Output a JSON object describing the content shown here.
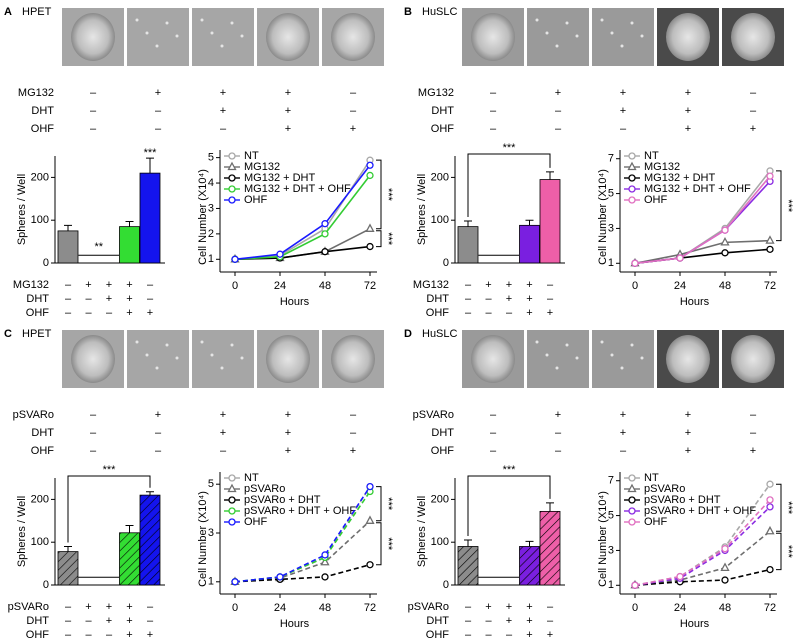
{
  "panels": [
    {
      "letter": "A",
      "title": "HPET",
      "rows": [
        {
          "label": "MG132",
          "marks": [
            "–",
            "+",
            "+",
            "+",
            "–"
          ]
        },
        {
          "label": "DHT",
          "marks": [
            "–",
            "–",
            "+",
            "+",
            "–"
          ]
        },
        {
          "label": "OHF",
          "marks": [
            "–",
            "–",
            "–",
            "+",
            "+"
          ]
        }
      ]
    },
    {
      "letter": "B",
      "title": "HuSLC",
      "rows": [
        {
          "label": "MG132",
          "marks": [
            "–",
            "+",
            "+",
            "+",
            "–"
          ]
        },
        {
          "label": "DHT",
          "marks": [
            "–",
            "–",
            "+",
            "+",
            "–"
          ]
        },
        {
          "label": "OHF",
          "marks": [
            "–",
            "–",
            "–",
            "+",
            "+"
          ]
        }
      ]
    },
    {
      "letter": "C",
      "title": "HPET",
      "rows": [
        {
          "label": "pSVARo",
          "marks": [
            "–",
            "+",
            "+",
            "+",
            "–"
          ]
        },
        {
          "label": "DHT",
          "marks": [
            "–",
            "–",
            "+",
            "+",
            "–"
          ]
        },
        {
          "label": "OHF",
          "marks": [
            "–",
            "–",
            "–",
            "+",
            "+"
          ]
        }
      ]
    },
    {
      "letter": "D",
      "title": "HuSLC",
      "rows": [
        {
          "label": "pSVARo",
          "marks": [
            "–",
            "+",
            "+",
            "+",
            "–"
          ]
        },
        {
          "label": "DHT",
          "marks": [
            "–",
            "–",
            "+",
            "+",
            "–"
          ]
        },
        {
          "label": "OHF",
          "marks": [
            "–",
            "–",
            "–",
            "+",
            "+"
          ]
        }
      ]
    }
  ],
  "chart_data": [
    {
      "type": "bar",
      "y_label": "Spheres / Well",
      "category_rows": [
        {
          "label": "MG132",
          "marks": [
            "–",
            "+",
            "+",
            "+",
            "–"
          ]
        },
        {
          "label": "DHT",
          "marks": [
            "–",
            "–",
            "+",
            "+",
            "–"
          ]
        },
        {
          "label": "OHF",
          "marks": [
            "–",
            "–",
            "–",
            "+",
            "+"
          ]
        }
      ],
      "values": [
        75,
        0,
        0,
        85,
        210
      ],
      "errors": [
        13,
        0,
        0,
        12,
        35
      ],
      "colors": [
        "#8c8c8c",
        "#ffffff",
        "#ffffff",
        "#33dd33",
        "#1414ee"
      ],
      "hatch": false,
      "ylim": [
        0,
        250
      ],
      "yticks": [
        0,
        100,
        200
      ],
      "annotations": [
        "**",
        "***"
      ]
    },
    {
      "type": "line",
      "y_label": "Cell Number (X10⁴)",
      "x_label": "Hours",
      "x": [
        0,
        24,
        48,
        72
      ],
      "xlim": [
        -8,
        80
      ],
      "xticks": [
        0,
        24,
        48,
        72
      ],
      "ylim": [
        0.5,
        5.3
      ],
      "yticks": [
        1,
        2,
        3,
        4,
        5
      ],
      "dashed": false,
      "annotations": [
        "***",
        "***"
      ],
      "series": [
        {
          "name": "NT",
          "color": "#a8a8a8",
          "marker": "circle",
          "values": [
            1,
            1.15,
            2.2,
            4.9
          ]
        },
        {
          "name": "MG132",
          "color": "#6e6e6e",
          "marker": "triangle",
          "values": [
            1,
            1.05,
            1.3,
            2.2
          ]
        },
        {
          "name": "MG132 + DHT",
          "color": "#000000",
          "marker": "circle",
          "values": [
            1,
            1.05,
            1.3,
            1.5
          ]
        },
        {
          "name": "MG132 + DHT + OHF",
          "color": "#33cc33",
          "marker": "circle",
          "values": [
            1,
            1.1,
            2.0,
            4.3
          ]
        },
        {
          "name": "OHF",
          "color": "#1a1aff",
          "marker": "circle",
          "values": [
            1,
            1.2,
            2.4,
            4.7
          ]
        }
      ]
    },
    {
      "type": "bar",
      "y_label": "Spheres / Well",
      "category_rows": [
        {
          "label": "MG132",
          "marks": [
            "–",
            "+",
            "+",
            "+",
            "–"
          ]
        },
        {
          "label": "DHT",
          "marks": [
            "–",
            "–",
            "+",
            "+",
            "–"
          ]
        },
        {
          "label": "OHF",
          "marks": [
            "–",
            "–",
            "–",
            "+",
            "+"
          ]
        }
      ],
      "values": [
        85,
        0,
        0,
        88,
        195
      ],
      "errors": [
        13,
        0,
        0,
        12,
        18
      ],
      "colors": [
        "#8c8c8c",
        "#ffffff",
        "#ffffff",
        "#7a1fe0",
        "#ee5fa8"
      ],
      "hatch": false,
      "ylim": [
        0,
        250
      ],
      "yticks": [
        0,
        100,
        200
      ],
      "annotations": [
        "***"
      ]
    },
    {
      "type": "line",
      "y_label": "Cell Number (X10⁴)",
      "x_label": "Hours",
      "x": [
        0,
        24,
        48,
        72
      ],
      "xlim": [
        -8,
        80
      ],
      "xticks": [
        0,
        24,
        48,
        72
      ],
      "ylim": [
        0.5,
        7.5
      ],
      "yticks": [
        1,
        3,
        5,
        7
      ],
      "dashed": false,
      "annotations": [
        "***"
      ],
      "series": [
        {
          "name": "NT",
          "color": "#a8a8a8",
          "marker": "circle",
          "values": [
            1,
            1.3,
            3.0,
            6.3
          ]
        },
        {
          "name": "MG132",
          "color": "#6e6e6e",
          "marker": "triangle",
          "values": [
            1,
            1.5,
            2.2,
            2.3
          ]
        },
        {
          "name": "MG132 + DHT",
          "color": "#000000",
          "marker": "circle",
          "values": [
            1,
            1.3,
            1.6,
            1.8
          ]
        },
        {
          "name": "MG132 + DHT + OHF",
          "color": "#8a2be2",
          "marker": "circle",
          "values": [
            1,
            1.3,
            2.9,
            5.7
          ]
        },
        {
          "name": "OHF",
          "color": "#e070c0",
          "marker": "circle",
          "values": [
            1,
            1.3,
            2.9,
            6.0
          ]
        }
      ]
    },
    {
      "type": "bar",
      "y_label": "Spheres / Well",
      "category_rows": [
        {
          "label": "pSVARo",
          "marks": [
            "–",
            "+",
            "+",
            "+",
            "–"
          ]
        },
        {
          "label": "DHT",
          "marks": [
            "–",
            "–",
            "+",
            "+",
            "–"
          ]
        },
        {
          "label": "OHF",
          "marks": [
            "–",
            "–",
            "–",
            "+",
            "+"
          ]
        }
      ],
      "values": [
        78,
        0,
        0,
        122,
        210
      ],
      "errors": [
        12,
        0,
        0,
        17,
        8
      ],
      "colors": [
        "#8c8c8c",
        "#ffffff",
        "#ffffff",
        "#33dd33",
        "#1414ee"
      ],
      "hatch": true,
      "ylim": [
        0,
        250
      ],
      "yticks": [
        0,
        100,
        200
      ],
      "annotations": [
        "***"
      ]
    },
    {
      "type": "line",
      "y_label": "Cell Number (X10⁴)",
      "x_label": "Hours",
      "x": [
        0,
        24,
        48,
        72
      ],
      "xlim": [
        -8,
        80
      ],
      "xticks": [
        0,
        24,
        48,
        72
      ],
      "ylim": [
        0.5,
        5.5
      ],
      "yticks": [
        1,
        3,
        5
      ],
      "dashed": true,
      "annotations": [
        "***",
        "***"
      ],
      "series": [
        {
          "name": "NT",
          "color": "#a8a8a8",
          "marker": "circle",
          "values": [
            1,
            1.2,
            2.0,
            4.9
          ]
        },
        {
          "name": "pSVARo",
          "color": "#6e6e6e",
          "marker": "triangle",
          "values": [
            1,
            1.15,
            1.8,
            3.5
          ]
        },
        {
          "name": "pSVARo + DHT",
          "color": "#000000",
          "marker": "circle",
          "values": [
            1,
            1.1,
            1.2,
            1.7
          ]
        },
        {
          "name": "pSVARo + DHT + OHF",
          "color": "#33cc33",
          "marker": "circle",
          "values": [
            1,
            1.2,
            2.0,
            4.7
          ]
        },
        {
          "name": "OHF",
          "color": "#1a1aff",
          "marker": "circle",
          "values": [
            1,
            1.2,
            2.1,
            4.9
          ]
        }
      ]
    },
    {
      "type": "bar",
      "y_label": "Spheres / Well",
      "category_rows": [
        {
          "label": "pSVARo",
          "marks": [
            "–",
            "+",
            "+",
            "+",
            "–"
          ]
        },
        {
          "label": "DHT",
          "marks": [
            "–",
            "–",
            "+",
            "+",
            "–"
          ]
        },
        {
          "label": "OHF",
          "marks": [
            "–",
            "–",
            "–",
            "+",
            "+"
          ]
        }
      ],
      "values": [
        90,
        0,
        0,
        90,
        172
      ],
      "errors": [
        15,
        0,
        0,
        12,
        20
      ],
      "colors": [
        "#8c8c8c",
        "#ffffff",
        "#ffffff",
        "#7a1fe0",
        "#ee5fa8"
      ],
      "hatch": true,
      "ylim": [
        0,
        250
      ],
      "yticks": [
        0,
        100,
        200
      ],
      "annotations": [
        "***"
      ]
    },
    {
      "type": "line",
      "y_label": "Cell Number (X10⁴)",
      "x_label": "Hours",
      "x": [
        0,
        24,
        48,
        72
      ],
      "xlim": [
        -8,
        80
      ],
      "xticks": [
        0,
        24,
        48,
        72
      ],
      "ylim": [
        0.5,
        7.5
      ],
      "yticks": [
        1,
        3,
        5,
        7
      ],
      "dashed": true,
      "annotations": [
        "***",
        "***"
      ],
      "series": [
        {
          "name": "NT",
          "color": "#a8a8a8",
          "marker": "circle",
          "values": [
            1,
            1.5,
            3.2,
            6.8
          ]
        },
        {
          "name": "pSVARo",
          "color": "#6e6e6e",
          "marker": "triangle",
          "values": [
            1,
            1.3,
            2.0,
            4.1
          ]
        },
        {
          "name": "pSVARo + DHT",
          "color": "#000000",
          "marker": "circle",
          "values": [
            1,
            1.2,
            1.3,
            1.9
          ]
        },
        {
          "name": "pSVARo + DHT + OHF",
          "color": "#8a2be2",
          "marker": "circle",
          "values": [
            1,
            1.4,
            3.0,
            5.5
          ]
        },
        {
          "name": "OHF",
          "color": "#e070c0",
          "marker": "circle",
          "values": [
            1,
            1.5,
            3.1,
            5.9
          ]
        }
      ]
    }
  ]
}
